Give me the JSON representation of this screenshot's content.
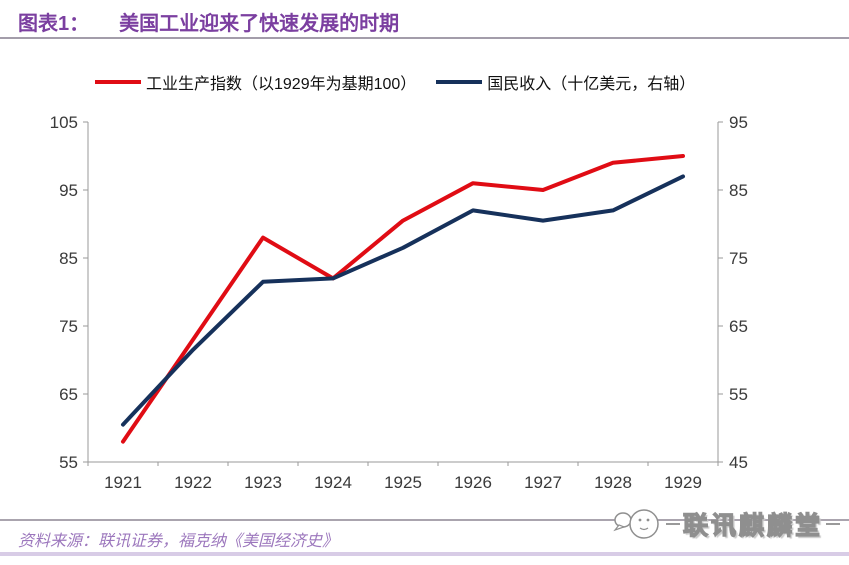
{
  "header": {
    "label": "图表1：",
    "title": "美国工业迎来了快速发展的时期",
    "accent_color": "#7b3fa0"
  },
  "chart_data": {
    "type": "line",
    "categories": [
      "1921",
      "1922",
      "1923",
      "1924",
      "1925",
      "1926",
      "1927",
      "1928",
      "1929"
    ],
    "series": [
      {
        "name": "工业生产指数（以1929年为基期100）",
        "axis": "left",
        "color": "#e00c14",
        "values": [
          58,
          73,
          88,
          82,
          90.5,
          96,
          95,
          99,
          100
        ]
      },
      {
        "name": "国民收入（十亿美元，右轴）",
        "axis": "right",
        "color": "#16315b",
        "values": [
          50.5,
          61.5,
          71.5,
          72,
          76.5,
          82,
          80.5,
          82,
          87
        ]
      }
    ],
    "left_axis": {
      "min": 55,
      "max": 105,
      "ticks": [
        55,
        65,
        75,
        85,
        95,
        105
      ]
    },
    "right_axis": {
      "min": 45,
      "max": 95,
      "ticks": [
        45,
        55,
        65,
        75,
        85,
        95
      ]
    },
    "grid": false,
    "legend_position": "top",
    "axis_color": "#9a9a9a",
    "tick_label_color": "#3a3a3a"
  },
  "footer": {
    "source": "资料来源：联讯证券，福克纳《美国经济史》",
    "watermark": "联讯麒麟堂"
  }
}
